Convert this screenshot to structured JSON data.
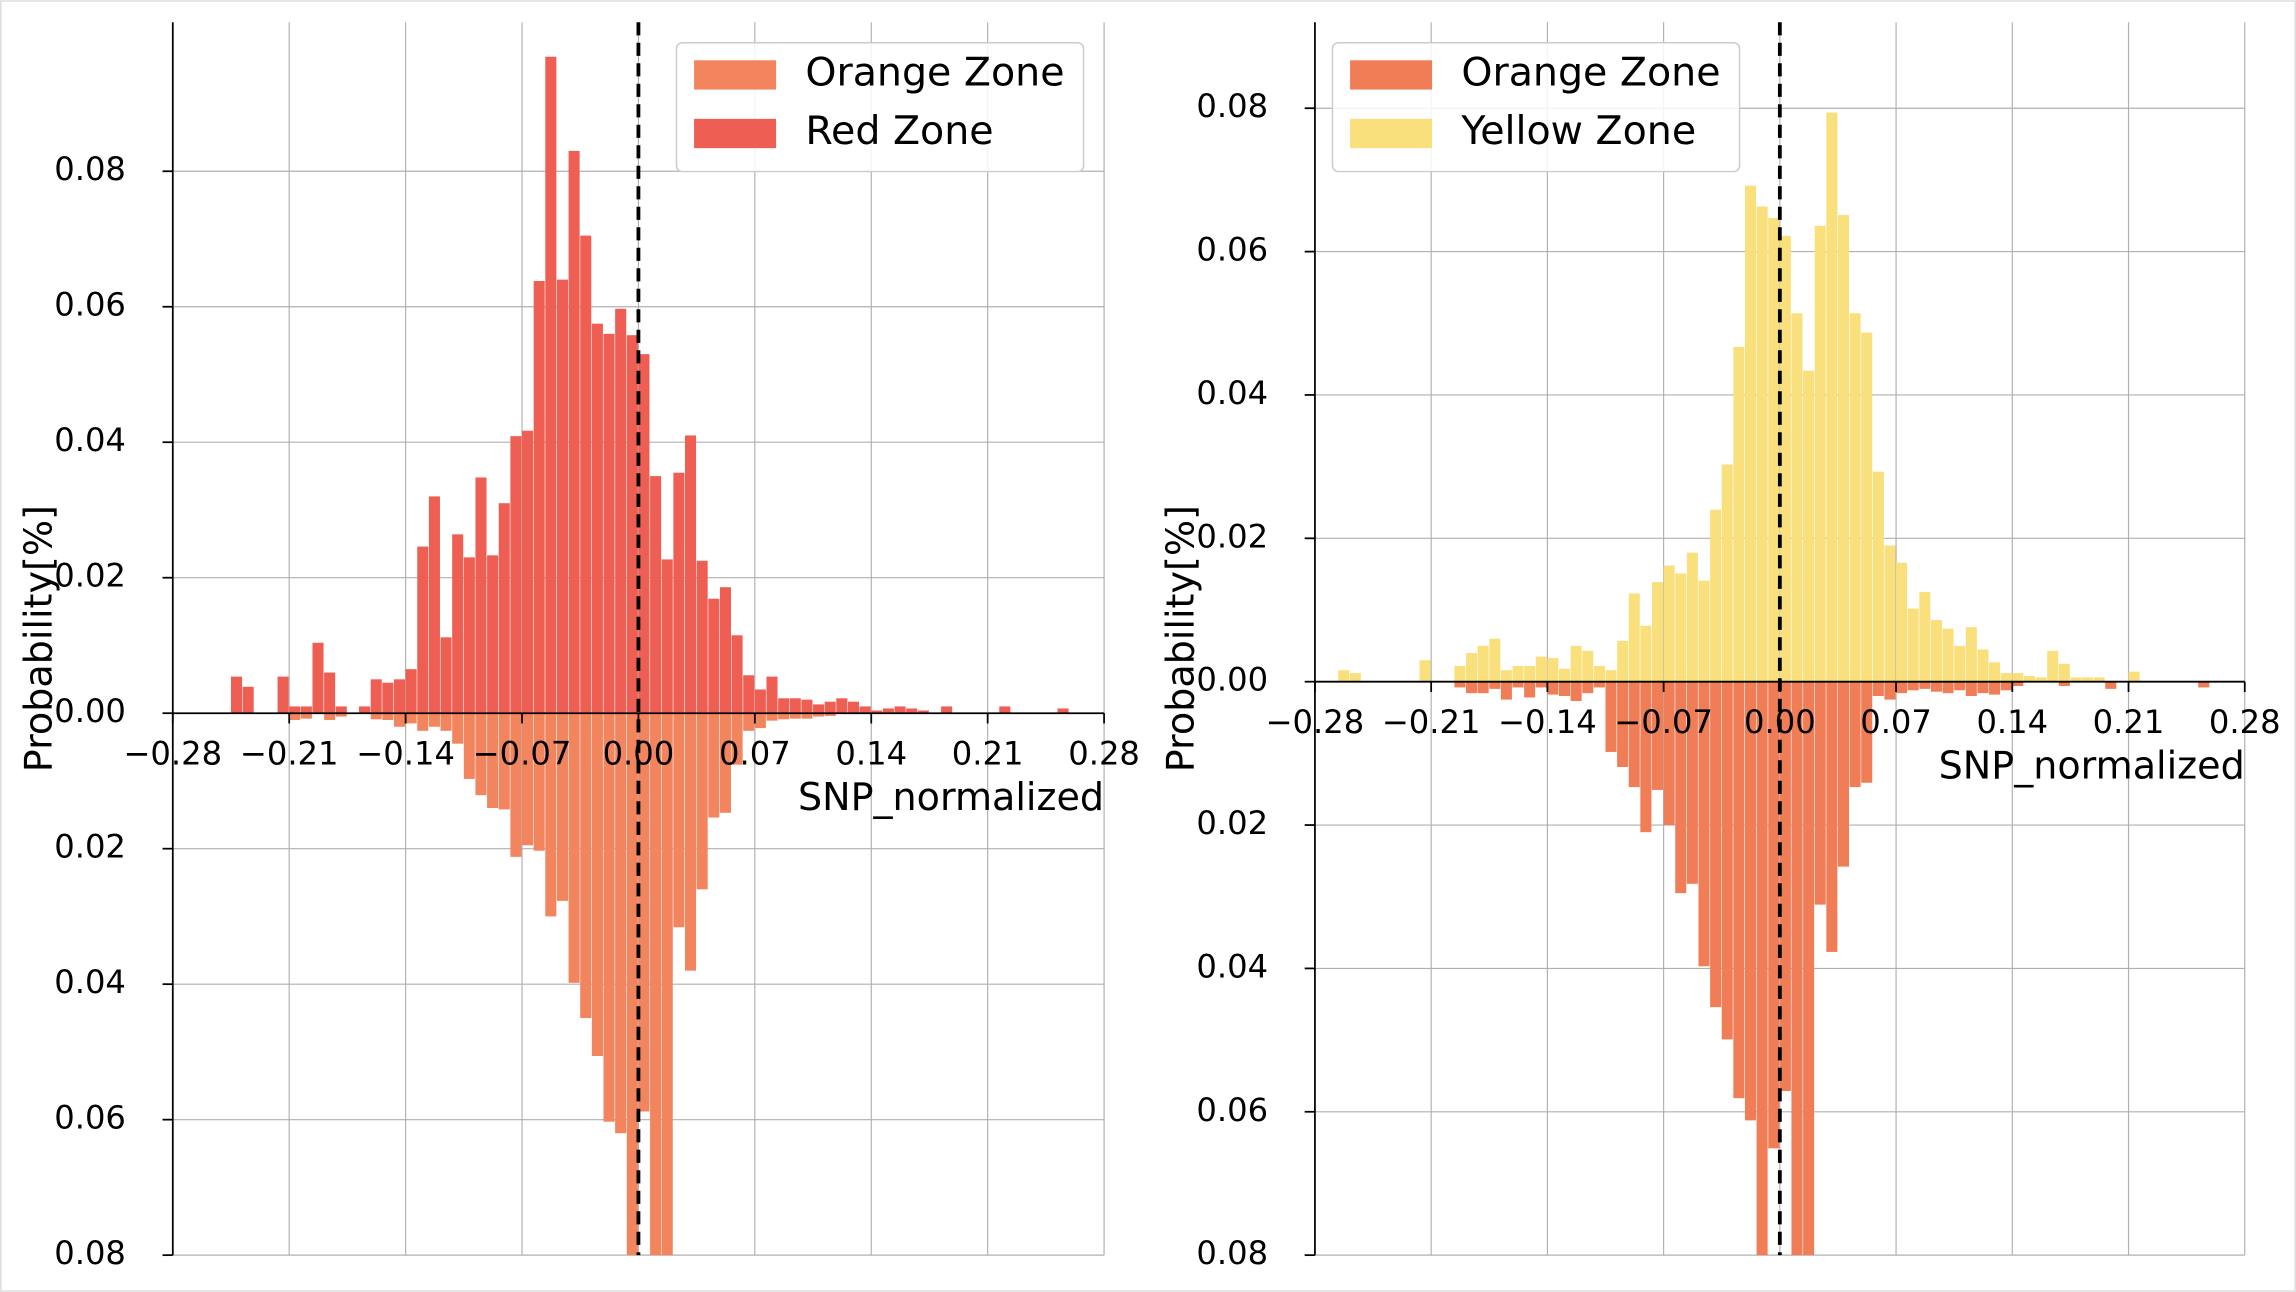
{
  "chart_data": [
    {
      "type": "histogram",
      "xlabel": "SNP_normalized",
      "ylabel": "Probability[%]",
      "xlim": [
        -0.28,
        0.28
      ],
      "xticks": [
        {
          "value": -0.28,
          "label": "−0.28"
        },
        {
          "value": -0.21,
          "label": "−0.21"
        },
        {
          "value": -0.14,
          "label": "−0.14"
        },
        {
          "value": -0.07,
          "label": "−0.07"
        },
        {
          "value": 0,
          "label": "0.00"
        },
        0.07,
        0.14,
        0.21,
        0.28
      ],
      "ylim": [
        -0.08,
        0.102
      ],
      "yticks": [
        {
          "value": -0.08,
          "label": "0.08"
        },
        {
          "value": -0.06,
          "label": "0.06"
        },
        {
          "value": -0.04,
          "label": "0.04"
        },
        {
          "value": -0.02,
          "label": "0.02"
        },
        {
          "value": 0,
          "label": "0.00"
        },
        0.02,
        0.04,
        0.06,
        0.08
      ],
      "grid": true,
      "vline": 0,
      "legend": "upper right",
      "bins": [
        -0.245,
        -0.238,
        -0.231,
        -0.224,
        -0.217,
        -0.21,
        -0.203,
        -0.196,
        -0.189,
        -0.182,
        -0.175,
        -0.168,
        -0.161,
        -0.154,
        -0.147,
        -0.14,
        -0.133,
        -0.126,
        -0.119,
        -0.112,
        -0.105,
        -0.098,
        -0.091,
        -0.084,
        -0.077,
        -0.07,
        -0.063,
        -0.056,
        -0.049,
        -0.042,
        -0.035,
        -0.028,
        -0.021,
        -0.014,
        -0.007,
        0,
        0.007,
        0.014,
        0.021,
        0.028,
        0.035,
        0.042,
        0.049,
        0.056,
        0.063,
        0.07,
        0.077,
        0.084,
        0.091,
        0.098,
        0.105,
        0.112,
        0.119,
        0.126,
        0.133,
        0.14,
        0.147,
        0.154,
        0.161,
        0.168,
        0.175,
        0.182,
        0.189,
        0.196,
        0.203,
        0.21,
        0.217,
        0.224,
        0.231,
        0.238,
        0.245,
        0.252,
        0.259
      ],
      "series": [
        {
          "name": "Orange Zone",
          "color": "#f2845e",
          "values": [
            0,
            0,
            0,
            0,
            0,
            -0.001,
            -0.0008,
            0,
            -0.001,
            -0.0005,
            0,
            0,
            -0.0009,
            -0.001,
            -0.002,
            -0.0015,
            -0.0026,
            -0.002,
            -0.0026,
            -0.0045,
            -0.0097,
            -0.0121,
            -0.014,
            -0.0142,
            -0.0212,
            -0.0195,
            -0.0203,
            -0.03,
            -0.0277,
            -0.0398,
            -0.045,
            -0.0506,
            -0.0603,
            -0.062,
            -0.085,
            -0.0588,
            -0.082,
            -0.083,
            -0.0316,
            -0.038,
            -0.026,
            -0.0154,
            -0.0147,
            -0.0076,
            -0.0026,
            -0.0022,
            -0.0011,
            -0.0009,
            -0.0008,
            -0.0008,
            -0.0005,
            -0.0004,
            0,
            0,
            0,
            0,
            0,
            0,
            0,
            0,
            0,
            0,
            0,
            0,
            0,
            0,
            0,
            0,
            0,
            0,
            0,
            0
          ]
        },
        {
          "name": "Red Zone",
          "color": "#ee5e52",
          "values": [
            0.0054,
            0.0039,
            0,
            0,
            0.0054,
            0.001,
            0.001,
            0.0104,
            0.006,
            0.001,
            0,
            0.001,
            0.005,
            0.0045,
            0.005,
            0.0065,
            0.0246,
            0.032,
            0.0112,
            0.0264,
            0.023,
            0.0348,
            0.0233,
            0.031,
            0.0409,
            0.0417,
            0.0638,
            0.0969,
            0.064,
            0.083,
            0.0705,
            0.0575,
            0.056,
            0.0597,
            0.0558,
            0.053,
            0.035,
            0.0227,
            0.0355,
            0.041,
            0.0225,
            0.0169,
            0.0186,
            0.0115,
            0.0056,
            0.0035,
            0.0054,
            0.0022,
            0.0022,
            0.002,
            0.0013,
            0.0017,
            0.0022,
            0.0017,
            0.001,
            0.0004,
            0.0007,
            0.001,
            0.0007,
            0.0004,
            0,
            0.001,
            0,
            0,
            0,
            0,
            0.001,
            0,
            0,
            0,
            0,
            0.0007
          ]
        }
      ]
    },
    {
      "type": "histogram",
      "xlabel": "SNP_normalized",
      "ylabel": "Probability[%]",
      "xlim": [
        -0.28,
        0.28
      ],
      "xticks": [
        {
          "value": -0.28,
          "label": "−0.28"
        },
        {
          "value": -0.21,
          "label": "−0.21"
        },
        {
          "value": -0.14,
          "label": "−0.14"
        },
        {
          "value": -0.07,
          "label": "−0.07"
        },
        {
          "value": 0,
          "label": "0.00"
        },
        0.07,
        0.14,
        0.21,
        0.28
      ],
      "ylim": [
        -0.08,
        0.092
      ],
      "yticks": [
        {
          "value": -0.08,
          "label": "0.08"
        },
        {
          "value": -0.06,
          "label": "0.06"
        },
        {
          "value": -0.04,
          "label": "0.04"
        },
        {
          "value": -0.02,
          "label": "0.02"
        },
        {
          "value": 0,
          "label": "0.00"
        },
        0.02,
        0.04,
        0.06,
        0.08
      ],
      "grid": true,
      "vline": 0,
      "legend": "upper left",
      "bins": [
        -0.273,
        -0.266,
        -0.259,
        -0.252,
        -0.245,
        -0.238,
        -0.231,
        -0.224,
        -0.217,
        -0.21,
        -0.203,
        -0.196,
        -0.189,
        -0.182,
        -0.175,
        -0.168,
        -0.161,
        -0.154,
        -0.147,
        -0.14,
        -0.133,
        -0.126,
        -0.119,
        -0.112,
        -0.105,
        -0.098,
        -0.091,
        -0.084,
        -0.077,
        -0.07,
        -0.063,
        -0.056,
        -0.049,
        -0.042,
        -0.035,
        -0.028,
        -0.021,
        -0.014,
        -0.007,
        0,
        0.007,
        0.014,
        0.021,
        0.028,
        0.035,
        0.042,
        0.049,
        0.056,
        0.063,
        0.07,
        0.077,
        0.084,
        0.091,
        0.098,
        0.105,
        0.112,
        0.119,
        0.126,
        0.133,
        0.14,
        0.147,
        0.154,
        0.161,
        0.168,
        0.175,
        0.182,
        0.189,
        0.196,
        0.203,
        0.21,
        0.217,
        0.224,
        0.231,
        0.238,
        0.245,
        0.252,
        0.259,
        0.266,
        0.273
      ],
      "series": [
        {
          "name": "Orange Zone",
          "color": "#f07d56",
          "values": [
            0,
            0,
            0,
            0,
            0,
            0,
            0,
            0,
            0,
            0,
            0,
            -0.0008,
            -0.0016,
            -0.0016,
            -0.001,
            -0.0025,
            -0.0008,
            -0.0022,
            -0.0008,
            -0.0018,
            -0.002,
            -0.0027,
            -0.0016,
            -0.0008,
            -0.0098,
            -0.0119,
            -0.0147,
            -0.021,
            -0.0151,
            -0.02,
            -0.0295,
            -0.0282,
            -0.0397,
            -0.0454,
            -0.0499,
            -0.0581,
            -0.0612,
            -0.082,
            -0.0651,
            -0.0571,
            -0.085,
            -0.082,
            -0.0311,
            -0.0377,
            -0.0258,
            -0.0147,
            -0.0141,
            -0.002,
            -0.0025,
            -0.0016,
            -0.0012,
            -0.001,
            -0.0014,
            -0.0016,
            -0.0012,
            -0.002,
            -0.0016,
            -0.0018,
            -0.0012,
            -0.0006,
            0,
            0,
            0,
            -0.0006,
            0,
            0,
            0,
            -0.001,
            0,
            0,
            0,
            0,
            0,
            0,
            0,
            -0.0008,
            0,
            0
          ]
        },
        {
          "name": "Yellow Zone",
          "color": "#fae07c",
          "values": [
            0,
            0.0016,
            0.0012,
            0,
            0,
            0,
            0,
            0,
            0.003,
            0,
            0,
            0.0022,
            0.004,
            0.005,
            0.006,
            0.0016,
            0.0022,
            0.0022,
            0.0035,
            0.0033,
            0.0018,
            0.005,
            0.0043,
            0.0022,
            0.0016,
            0.0057,
            0.0123,
            0.0078,
            0.0139,
            0.0162,
            0.0151,
            0.018,
            0.0141,
            0.024,
            0.0303,
            0.0467,
            0.0692,
            0.0663,
            0.0647,
            0.0622,
            0.0514,
            0.0434,
            0.0636,
            0.0794,
            0.0651,
            0.0514,
            0.0487,
            0.0293,
            0.019,
            0.0166,
            0.0102,
            0.0125,
            0.0086,
            0.0074,
            0.005,
            0.0076,
            0.0045,
            0.0027,
            0.0012,
            0.0012,
            0.0008,
            0.0006,
            0.0043,
            0.0025,
            0.0006,
            0.0006,
            0.0006,
            0,
            0,
            0.0014,
            0,
            0,
            0,
            0,
            0,
            0,
            0,
            0
          ]
        }
      ]
    }
  ]
}
